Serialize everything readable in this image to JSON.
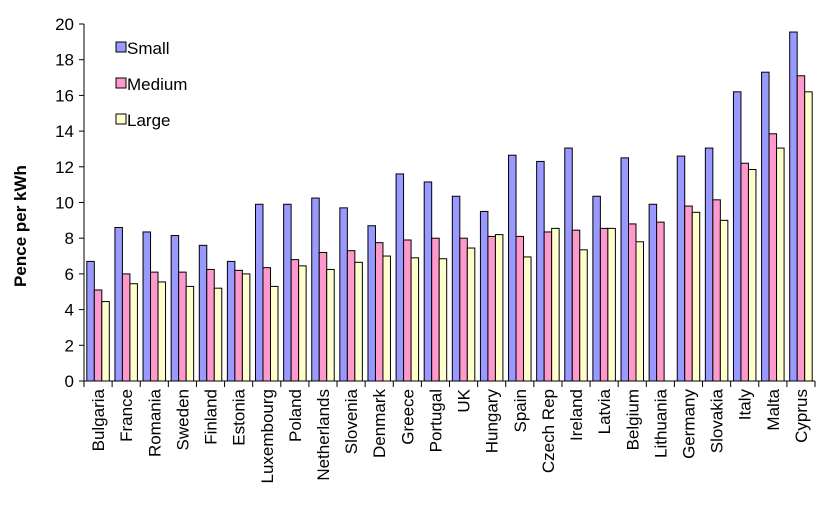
{
  "chart_data": {
    "type": "bar",
    "ylabel": "Pence per kWh",
    "ylim": [
      0,
      20
    ],
    "yticks": [
      0,
      2,
      4,
      6,
      8,
      10,
      12,
      14,
      16,
      18,
      20
    ],
    "grid": false,
    "legend_position": "top-left",
    "categories": [
      "Bulgaria",
      "France",
      "Romania",
      "Sweden",
      "Finland",
      "Estonia",
      "Luxembourg",
      "Poland",
      "Netherlands",
      "Slovenia",
      "Denmark",
      "Greece",
      "Portugal",
      "UK",
      "Hungary",
      "Spain",
      "Czech Rep",
      "Ireland",
      "Latvia",
      "Belgium",
      "Lithuania",
      "Germany",
      "Slovakia",
      "Italy",
      "Malta",
      "Cyprus"
    ],
    "series": [
      {
        "name": "Small",
        "color": "#9999ff",
        "values": [
          6.7,
          8.6,
          8.35,
          8.15,
          7.6,
          6.7,
          9.9,
          9.9,
          10.25,
          9.7,
          8.7,
          11.6,
          11.15,
          10.35,
          9.5,
          12.65,
          12.3,
          13.05,
          10.35,
          12.5,
          9.9,
          12.6,
          13.05,
          16.2,
          17.3,
          19.55
        ]
      },
      {
        "name": "Medium",
        "color": "#ff99cc",
        "values": [
          5.1,
          6.0,
          6.1,
          6.1,
          6.25,
          6.2,
          6.35,
          6.8,
          7.2,
          7.3,
          7.75,
          7.9,
          8.0,
          8.0,
          8.1,
          8.1,
          8.35,
          8.45,
          8.55,
          8.8,
          8.9,
          9.8,
          10.15,
          12.2,
          13.85,
          17.1
        ]
      },
      {
        "name": "Large",
        "color": "#ffffcc",
        "values": [
          4.45,
          5.45,
          5.55,
          5.3,
          5.2,
          6.0,
          5.3,
          6.45,
          6.25,
          6.65,
          7.0,
          6.9,
          6.85,
          7.45,
          8.2,
          6.95,
          8.55,
          7.35,
          8.55,
          7.8,
          0,
          9.45,
          9.0,
          11.85,
          13.05,
          16.2
        ]
      }
    ]
  }
}
